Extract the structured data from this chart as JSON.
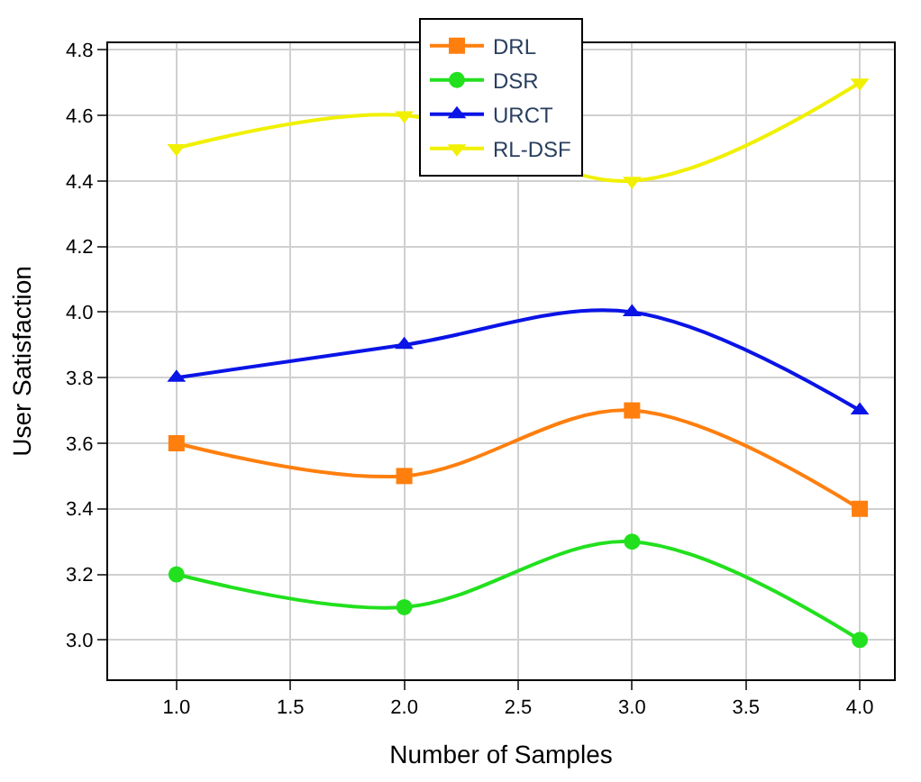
{
  "chart_data": {
    "type": "line",
    "xlabel": "Number of Samples",
    "ylabel": "User Satisfaction",
    "x": [
      1.0,
      2.0,
      3.0,
      4.0
    ],
    "series": [
      {
        "name": "DRL",
        "color": "#ff7f0e",
        "marker": "square",
        "values": [
          3.6,
          3.5,
          3.7,
          3.4
        ]
      },
      {
        "name": "DSR",
        "color": "#22e01e",
        "marker": "circle",
        "values": [
          3.2,
          3.1,
          3.3,
          3.0
        ]
      },
      {
        "name": "URCT",
        "color": "#0a14e6",
        "marker": "triangle",
        "values": [
          3.8,
          3.9,
          4.0,
          3.7
        ]
      },
      {
        "name": "RL-DSF",
        "color": "#f0f000",
        "marker": "triangle-down",
        "values": [
          4.5,
          4.6,
          4.4,
          4.7
        ]
      }
    ],
    "xlim": [
      0.7,
      4.15
    ],
    "xticks": [
      {
        "value": 1,
        "label": "1.0"
      },
      {
        "value": 1.5,
        "label": "1.5"
      },
      {
        "value": 2,
        "label": "2.0"
      },
      {
        "value": 2.5,
        "label": "2.5"
      },
      {
        "value": 3,
        "label": "3.0"
      },
      {
        "value": 3.5,
        "label": "3.5"
      },
      {
        "value": 4,
        "label": "4.0"
      }
    ],
    "ylim": [
      2.88,
      4.82
    ],
    "yticks": [
      {
        "value": 3.0,
        "label": "3.0"
      },
      {
        "value": 3.2,
        "label": "3.2"
      },
      {
        "value": 3.4,
        "label": "3.4"
      },
      {
        "value": 3.6,
        "label": "3.6"
      },
      {
        "value": 3.8,
        "label": "3.8"
      },
      {
        "value": 4.0,
        "label": "4.0"
      },
      {
        "value": 4.2,
        "label": "4.2"
      },
      {
        "value": 4.4,
        "label": "4.4"
      },
      {
        "value": 4.6,
        "label": "4.6"
      },
      {
        "value": 4.8,
        "label": "4.8"
      }
    ],
    "grid": true,
    "legend": "top",
    "line_style": "solid"
  }
}
